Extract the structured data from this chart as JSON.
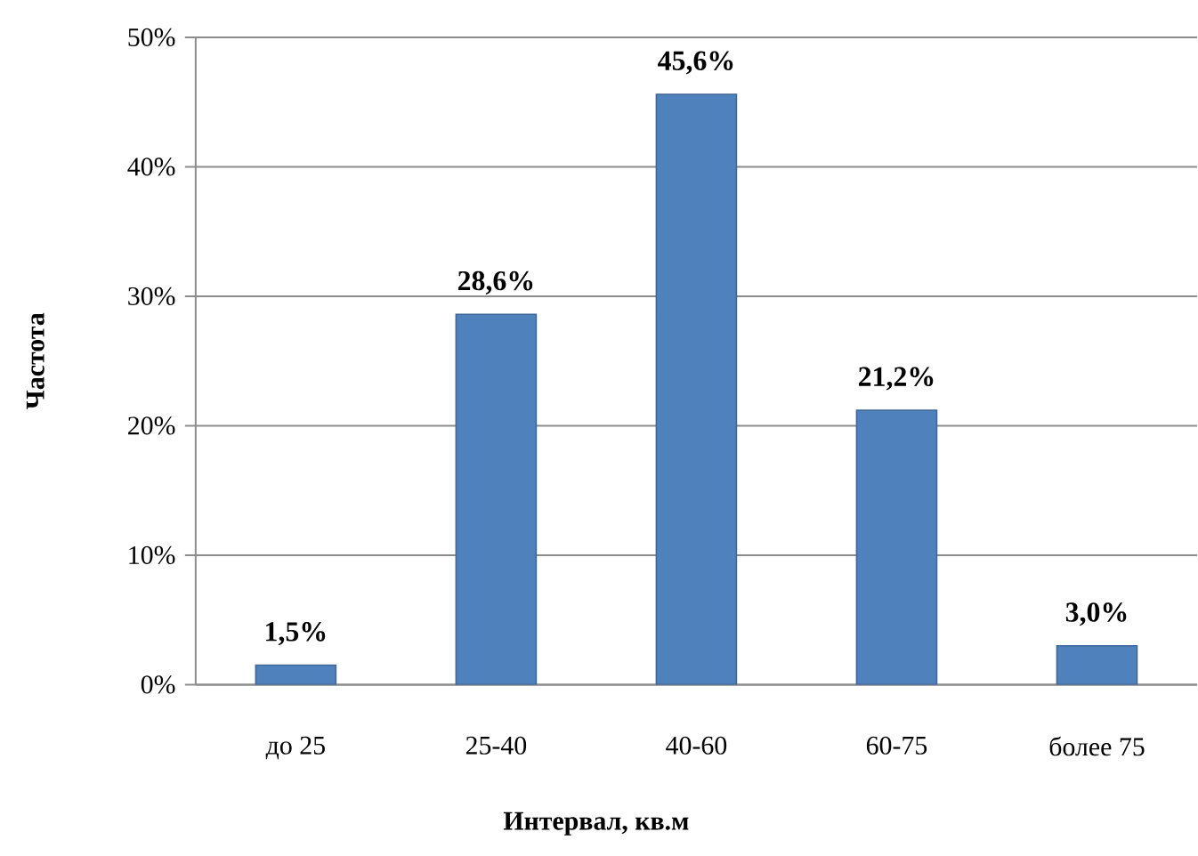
{
  "chart_data": {
    "type": "bar",
    "xlabel": "Интервал, кв.м",
    "ylabel": "Частота",
    "categories": [
      "до 25",
      "25-40",
      "40-60",
      "60-75",
      "более 75"
    ],
    "values": [
      1.5,
      28.6,
      45.6,
      21.2,
      3.0
    ],
    "value_labels": [
      "1,5%",
      "28,6%",
      "45,6%",
      "21,2%",
      "3,0%"
    ],
    "color": "#4f81bd",
    "ylim": [
      0,
      50
    ],
    "yticks": [
      {
        "value": 0,
        "label": "0%"
      },
      {
        "value": 10,
        "label": "10%"
      },
      {
        "value": 20,
        "label": "20%"
      },
      {
        "value": 30,
        "label": "30%"
      },
      {
        "value": 40,
        "label": "40%"
      },
      {
        "value": 50,
        "label": "50%"
      }
    ],
    "grid": "y"
  }
}
